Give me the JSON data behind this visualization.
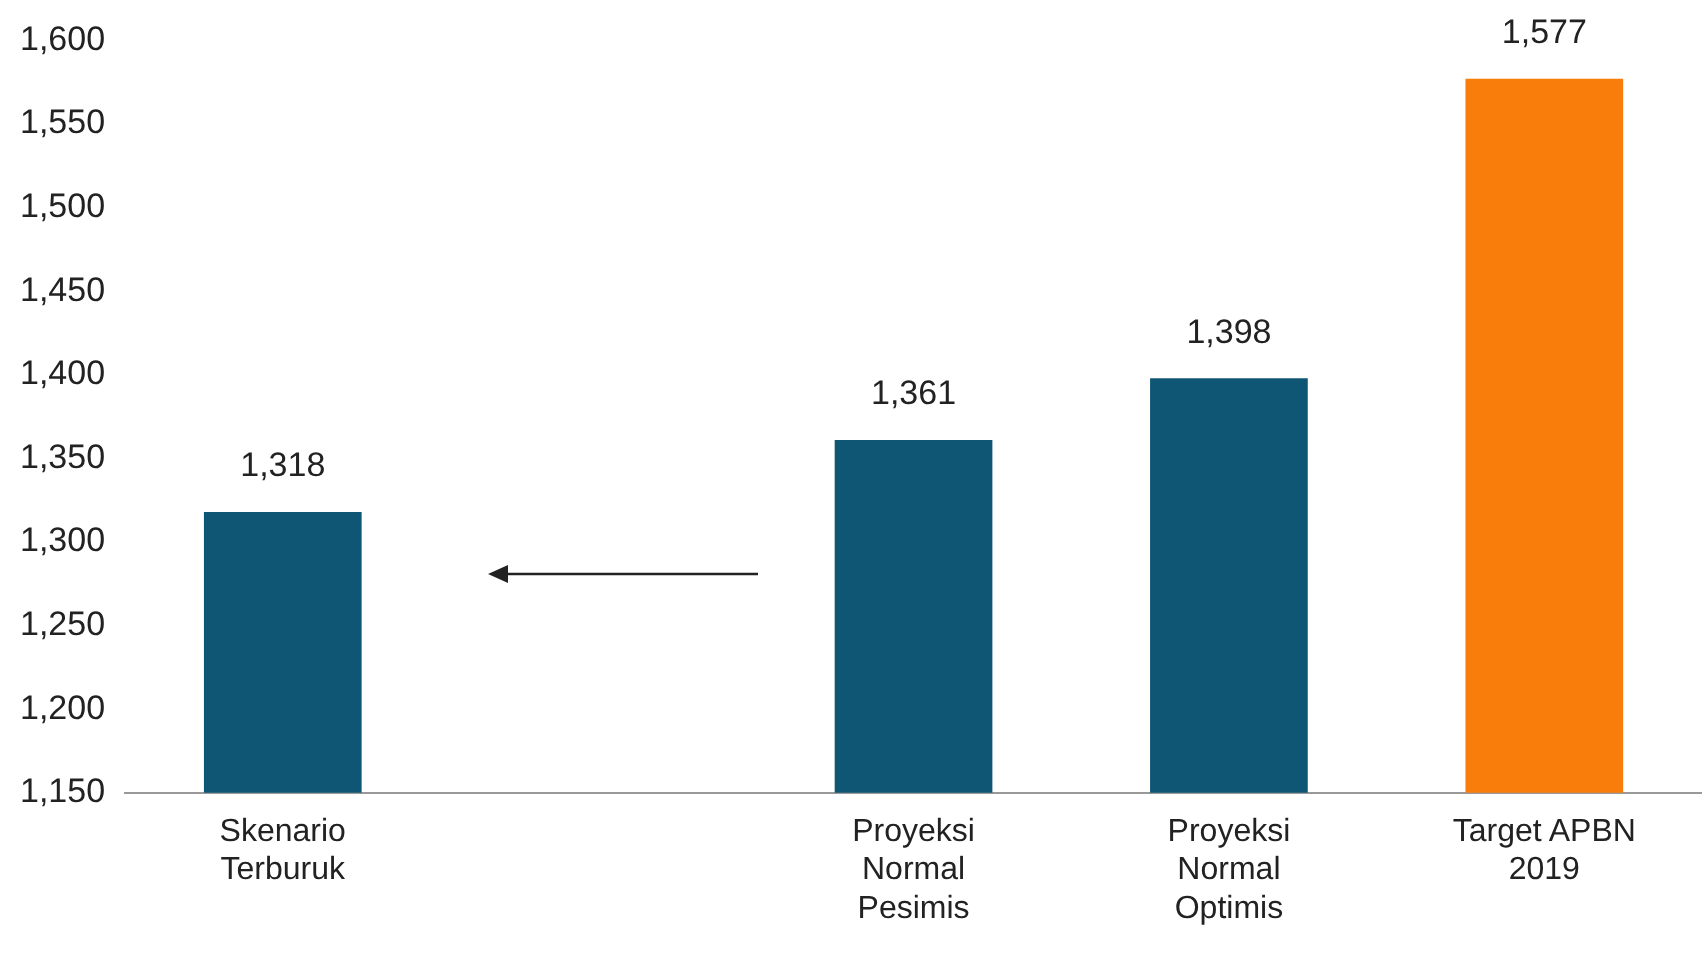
{
  "chart_data": {
    "type": "bar",
    "categories": [
      "Skenario\nTerburuk",
      null,
      "Proyeksi\nNormal\nPesimis",
      "Proyeksi\nNormal\nOptimis",
      "Target APBN\n2019"
    ],
    "values": [
      1318,
      null,
      1361,
      1398,
      1577
    ],
    "colors": [
      "#0f5674",
      null,
      "#0f5674",
      "#0f5674",
      "#f97d0b"
    ],
    "value_labels": [
      "1,318",
      null,
      "1,361",
      "1,398",
      "1,577"
    ],
    "ylim": [
      1150,
      1600
    ],
    "yticks": [
      {
        "value": 1150,
        "label": "1,150"
      },
      {
        "value": 1200,
        "label": "1,200"
      },
      {
        "value": 1250,
        "label": "1,250"
      },
      {
        "value": 1300,
        "label": "1,300"
      },
      {
        "value": 1350,
        "label": "1,350"
      },
      {
        "value": 1400,
        "label": "1,400"
      },
      {
        "value": 1450,
        "label": "1,450"
      },
      {
        "value": 1500,
        "label": "1,500"
      },
      {
        "value": 1550,
        "label": "1,550"
      },
      {
        "value": 1600,
        "label": "1,600"
      }
    ],
    "grid": false,
    "legend": false
  }
}
